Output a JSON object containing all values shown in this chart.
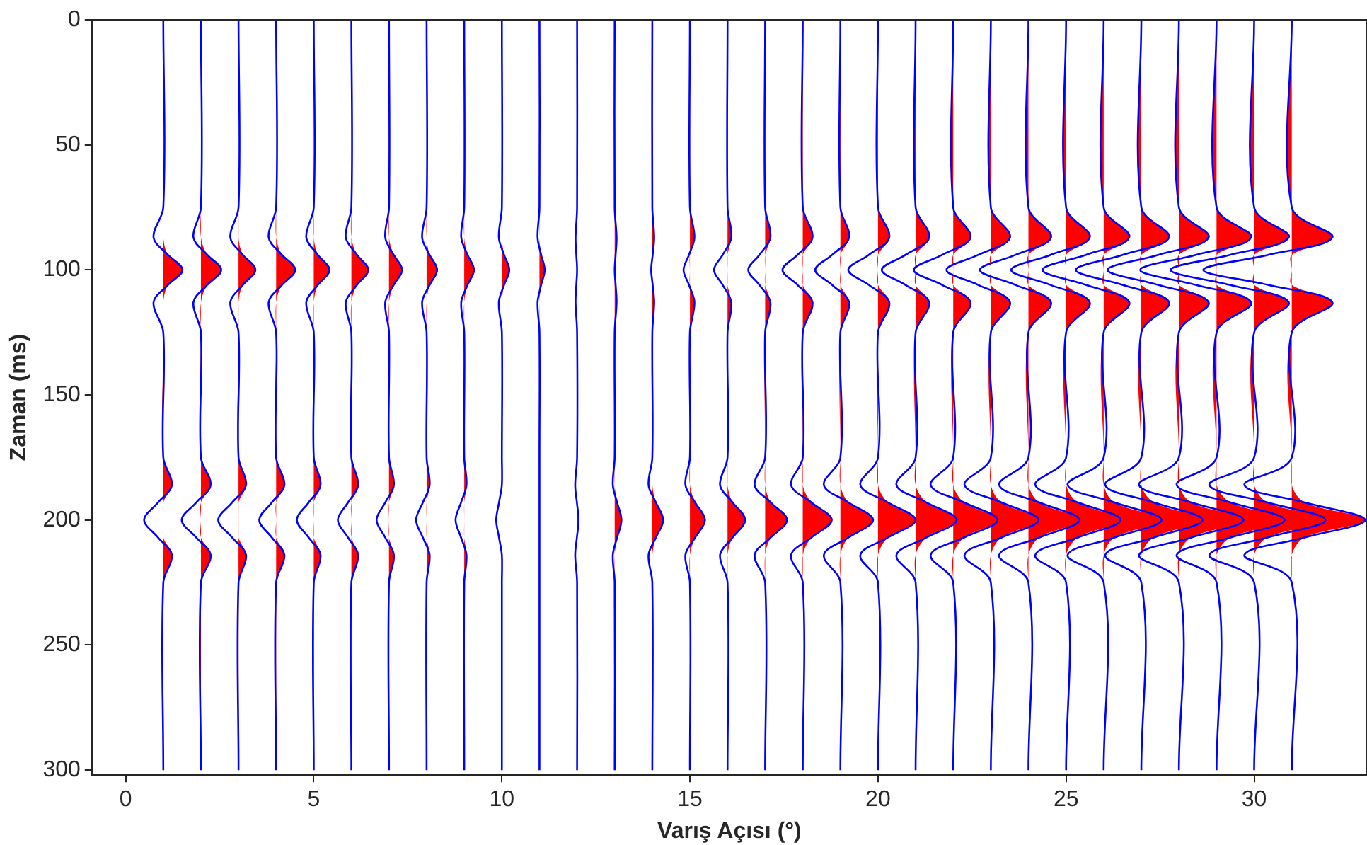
{
  "chart_data": {
    "type": "line",
    "xlabel": "Varış Açısı (°)",
    "ylabel": "Zaman (ms)",
    "xlim": [
      -0.9,
      33
    ],
    "xticks": [
      0,
      5,
      10,
      15,
      20,
      25,
      30
    ],
    "ylim": [
      302,
      0
    ],
    "yticks": [
      0,
      50,
      100,
      150,
      200,
      250,
      300
    ],
    "grid": false,
    "legend": false,
    "series": [
      {
        "type": "area",
        "color": "#ff0000",
        "x": [
          1,
          1,
          1,
          1.125,
          1.51,
          1.125,
          1,
          1,
          1,
          1.23,
          1,
          1,
          1,
          1.23,
          1,
          1
        ],
        "values": [
          0,
          75,
          87,
          94,
          100,
          106,
          113,
          125,
          175,
          186,
          193,
          200,
          207,
          214,
          225,
          300
        ]
      },
      {
        "type": "area",
        "color": "#ff0000",
        "x": [
          2,
          2,
          2,
          2.17,
          2.54,
          2.17,
          2,
          2,
          2,
          2.26,
          2,
          2,
          2,
          2.26,
          2,
          2
        ],
        "values": [
          0,
          75,
          87,
          94,
          100,
          106,
          113,
          125,
          175,
          186,
          193,
          200,
          207,
          214,
          225,
          300
        ]
      },
      {
        "type": "area",
        "color": "#ff0000",
        "x": [
          3,
          3,
          3,
          3.115,
          3.45,
          3.115,
          3,
          3,
          3,
          3.2,
          3,
          3,
          3,
          3.2,
          3,
          3
        ],
        "values": [
          0,
          75,
          87,
          94,
          100,
          106,
          113,
          125,
          175,
          186,
          193,
          200,
          207,
          214,
          225,
          300
        ]
      },
      {
        "type": "area",
        "color": "#ff0000",
        "x": [
          4,
          4,
          4,
          4.155,
          4.51,
          4.155,
          4,
          4,
          4,
          4.22,
          4,
          4,
          4,
          4.22,
          4,
          4
        ],
        "values": [
          0,
          75,
          87,
          94,
          100,
          106,
          113,
          125,
          175,
          186,
          193,
          200,
          207,
          214,
          225,
          300
        ]
      },
      {
        "type": "area",
        "color": "#ff0000",
        "x": [
          5,
          5,
          5,
          5.11,
          5.42,
          5.11,
          5,
          5,
          5,
          5.18,
          5,
          5,
          5,
          5.18,
          5,
          5
        ],
        "values": [
          0,
          75,
          87,
          94,
          100,
          106,
          113,
          125,
          175,
          186,
          193,
          200,
          207,
          214,
          225,
          300
        ]
      },
      {
        "type": "area",
        "color": "#ff0000",
        "x": [
          6,
          6,
          6,
          6.15,
          6.45,
          6.15,
          6,
          6,
          6,
          6.18,
          6,
          6,
          6,
          6.18,
          6,
          6
        ],
        "values": [
          0,
          75,
          87,
          94,
          100,
          106,
          113,
          125,
          175,
          186,
          193,
          200,
          207,
          214,
          225,
          300
        ]
      },
      {
        "type": "area",
        "color": "#ff0000",
        "x": [
          7,
          7,
          7,
          7.125,
          7.35,
          7.125,
          7,
          7,
          7,
          7.13,
          7,
          7,
          7,
          7.13,
          7,
          7
        ],
        "values": [
          0,
          75,
          87,
          94,
          100,
          106,
          113,
          125,
          175,
          186,
          193,
          200,
          207,
          214,
          225,
          300
        ]
      },
      {
        "type": "area",
        "color": "#ff0000",
        "x": [
          8,
          8,
          8,
          8.08,
          8.28,
          8.08,
          8,
          8,
          8,
          8.08,
          8,
          8,
          8,
          8.08,
          8,
          8
        ],
        "values": [
          0,
          75,
          87,
          94,
          100,
          106,
          113,
          125,
          175,
          186,
          193,
          200,
          207,
          214,
          225,
          300
        ]
      },
      {
        "type": "area",
        "color": "#ff0000",
        "x": [
          9,
          9,
          9,
          9.09,
          9.26,
          9.09,
          9,
          9,
          9,
          9.06,
          9,
          9,
          9,
          9.06,
          9,
          9
        ],
        "values": [
          0,
          75,
          87,
          94,
          100,
          106,
          113,
          125,
          175,
          186,
          193,
          200,
          207,
          214,
          225,
          300
        ]
      },
      {
        "type": "area",
        "color": "#ff0000",
        "x": [
          10,
          10,
          10,
          10.06,
          10.2,
          10.06,
          10,
          10,
          10,
          10,
          10,
          10,
          10,
          10,
          10,
          10
        ],
        "values": [
          0,
          75,
          87,
          94,
          100,
          106,
          113,
          125,
          175,
          186,
          193,
          200,
          207,
          214,
          225,
          300
        ]
      },
      {
        "type": "area",
        "color": "#ff0000",
        "x": [
          11,
          11,
          11,
          11.045,
          11.14,
          11.045,
          11,
          11,
          11,
          11,
          11,
          11,
          11,
          11,
          11,
          11
        ],
        "values": [
          0,
          75,
          87,
          94,
          100,
          106,
          113,
          125,
          175,
          186,
          193,
          200,
          207,
          214,
          225,
          300
        ]
      },
      {
        "type": "area",
        "color": "#ff0000",
        "x": [
          12,
          12,
          12,
          12,
          12,
          12,
          12,
          12,
          12,
          12,
          12,
          12.04,
          12,
          12,
          12,
          12
        ],
        "values": [
          0,
          75,
          87,
          94,
          100,
          106,
          113,
          125,
          175,
          186,
          193,
          200,
          207,
          214,
          225,
          300
        ]
      },
      {
        "type": "area",
        "color": "#ff0000",
        "x": [
          13,
          13,
          13.05,
          13.025,
          13,
          13.025,
          13.05,
          13,
          13,
          13,
          13.065,
          13.18,
          13.065,
          13,
          13,
          13
        ],
        "values": [
          0,
          75,
          87,
          94,
          100,
          106,
          113,
          125,
          175,
          186,
          193,
          200,
          207,
          214,
          225,
          300
        ]
      },
      {
        "type": "area",
        "color": "#ff0000",
        "x": [
          14,
          14,
          14.05,
          14.01,
          14,
          14.01,
          14.05,
          14,
          14,
          14,
          14.095,
          14.29,
          14.095,
          14,
          14,
          14
        ],
        "values": [
          0,
          75,
          87,
          94,
          100,
          106,
          113,
          125,
          175,
          186,
          193,
          200,
          207,
          214,
          225,
          300
        ]
      },
      {
        "type": "area",
        "color": "#ff0000",
        "x": [
          15,
          15,
          15.12,
          15,
          15,
          15,
          15.12,
          15,
          15,
          15,
          15.14,
          15.4,
          15.14,
          15,
          15,
          15
        ],
        "values": [
          0,
          75,
          87,
          94,
          100,
          106,
          113,
          125,
          175,
          186,
          193,
          200,
          207,
          214,
          225,
          300
        ]
      },
      {
        "type": "area",
        "color": "#ff0000",
        "x": [
          16,
          16,
          16.1,
          16,
          16,
          16,
          16.1,
          16,
          16,
          16,
          16.135,
          16.47,
          16.135,
          16,
          16,
          16
        ],
        "values": [
          0,
          75,
          87,
          94,
          100,
          106,
          113,
          125,
          175,
          186,
          193,
          200,
          207,
          214,
          225,
          300
        ]
      },
      {
        "type": "area",
        "color": "#ff0000",
        "x": [
          17,
          17,
          17.14,
          17,
          17,
          17,
          17.14,
          17,
          17,
          17,
          17.15,
          17.58,
          17.15,
          17,
          17,
          17
        ],
        "values": [
          0,
          75,
          87,
          94,
          100,
          106,
          113,
          125,
          175,
          186,
          193,
          200,
          207,
          214,
          225,
          300
        ]
      },
      {
        "type": "area",
        "color": "#ff0000",
        "x": [
          18,
          18,
          18.26,
          18,
          18,
          18,
          18.26,
          18,
          18,
          18,
          18.23,
          18.77,
          18.23,
          18,
          18,
          18
        ],
        "values": [
          0,
          75,
          87,
          94,
          100,
          106,
          113,
          125,
          175,
          186,
          193,
          200,
          207,
          214,
          225,
          300
        ]
      },
      {
        "type": "area",
        "color": "#ff0000",
        "x": [
          19,
          19,
          19.23,
          19,
          19,
          19,
          19.23,
          19,
          19,
          19,
          19.215,
          19.87,
          19.215,
          19,
          19,
          19
        ],
        "values": [
          0,
          75,
          87,
          94,
          100,
          106,
          113,
          125,
          175,
          186,
          193,
          200,
          207,
          214,
          225,
          300
        ]
      },
      {
        "type": "area",
        "color": "#ff0000",
        "x": [
          20,
          20,
          20.3,
          20,
          20,
          20,
          20.3,
          20,
          20,
          20,
          20.265,
          21,
          20.265,
          20,
          20,
          20
        ],
        "values": [
          0,
          75,
          87,
          94,
          100,
          106,
          113,
          125,
          175,
          186,
          193,
          200,
          207,
          214,
          225,
          300
        ]
      },
      {
        "type": "area",
        "color": "#ff0000",
        "x": [
          21,
          21,
          21.36,
          21,
          21,
          21,
          21.36,
          21,
          21,
          21,
          21.29,
          22.09,
          21.29,
          21,
          21,
          21
        ],
        "values": [
          0,
          75,
          87,
          94,
          100,
          106,
          113,
          125,
          175,
          186,
          193,
          200,
          207,
          214,
          225,
          300
        ]
      },
      {
        "type": "area",
        "color": "#ff0000",
        "x": [
          22,
          22,
          22.46,
          22,
          22,
          22,
          22.46,
          22,
          22,
          22,
          22.29,
          23.18,
          22.29,
          22,
          22,
          22
        ],
        "values": [
          0,
          75,
          87,
          94,
          100,
          106,
          113,
          125,
          175,
          186,
          193,
          200,
          207,
          214,
          225,
          300
        ]
      },
      {
        "type": "area",
        "color": "#ff0000",
        "x": [
          23,
          23,
          23.51,
          23,
          23,
          23,
          23.51,
          23,
          23,
          23,
          23.285,
          24.27,
          23.285,
          23,
          23,
          23
        ],
        "values": [
          0,
          75,
          87,
          94,
          100,
          106,
          113,
          125,
          175,
          186,
          193,
          200,
          207,
          214,
          225,
          300
        ]
      },
      {
        "type": "area",
        "color": "#ff0000",
        "x": [
          24,
          24,
          24.6,
          24,
          24,
          24,
          24.6,
          24,
          24,
          24,
          24.29,
          25.36,
          24.29,
          24,
          24,
          24
        ],
        "values": [
          0,
          75,
          87,
          94,
          100,
          106,
          113,
          125,
          175,
          186,
          193,
          200,
          207,
          214,
          225,
          300
        ]
      },
      {
        "type": "area",
        "color": "#ff0000",
        "x": [
          25,
          25,
          25.63,
          25,
          25,
          25,
          25.63,
          25,
          25,
          25,
          25.315,
          26.45,
          25.315,
          25,
          25,
          25
        ],
        "values": [
          0,
          75,
          87,
          94,
          100,
          106,
          113,
          125,
          175,
          186,
          193,
          200,
          207,
          214,
          225,
          300
        ]
      },
      {
        "type": "area",
        "color": "#ff0000",
        "x": [
          26,
          26,
          26.68,
          26,
          26,
          26,
          26.68,
          26,
          26,
          26,
          26.29,
          27.54,
          26.29,
          26,
          26,
          26
        ],
        "values": [
          0,
          75,
          87,
          94,
          100,
          106,
          113,
          125,
          175,
          186,
          193,
          200,
          207,
          214,
          225,
          300
        ]
      },
      {
        "type": "area",
        "color": "#ff0000",
        "x": [
          27,
          27,
          27.74,
          27,
          27,
          27,
          27.74,
          27,
          27,
          27,
          27.335,
          28.63,
          27.335,
          27,
          27,
          27
        ],
        "values": [
          0,
          75,
          87,
          94,
          100,
          106,
          113,
          125,
          175,
          186,
          193,
          200,
          207,
          214,
          225,
          300
        ]
      },
      {
        "type": "area",
        "color": "#ff0000",
        "x": [
          28,
          28,
          28.79,
          28,
          28,
          28,
          28.79,
          28,
          28,
          28,
          28.33,
          29.72,
          28.33,
          28,
          28,
          28
        ],
        "values": [
          0,
          75,
          87,
          94,
          100,
          106,
          113,
          125,
          175,
          186,
          193,
          200,
          207,
          214,
          225,
          300
        ]
      },
      {
        "type": "area",
        "color": "#ff0000",
        "x": [
          29,
          29,
          29.92,
          29,
          29,
          29,
          29.92,
          29,
          29,
          29,
          29.375,
          30.81,
          29.375,
          29,
          29,
          29
        ],
        "values": [
          0,
          75,
          87,
          94,
          100,
          106,
          113,
          125,
          175,
          186,
          193,
          200,
          207,
          214,
          225,
          300
        ]
      },
      {
        "type": "area",
        "color": "#ff0000",
        "x": [
          30,
          30,
          30.92,
          30,
          30,
          30,
          30.92,
          30,
          30,
          30,
          30.355,
          31.9,
          30.355,
          30,
          30,
          30
        ],
        "values": [
          0,
          75,
          87,
          94,
          100,
          106,
          113,
          125,
          175,
          186,
          193,
          200,
          207,
          214,
          225,
          300
        ]
      },
      {
        "type": "area",
        "color": "#ff0000",
        "x": [
          31,
          31,
          32.08,
          31,
          31,
          31,
          32.08,
          31,
          31,
          31,
          31.345,
          32.95,
          31.345,
          31,
          31,
          31
        ],
        "values": [
          0,
          75,
          87,
          94,
          100,
          106,
          113,
          125,
          175,
          186,
          193,
          200,
          207,
          214,
          225,
          300
        ]
      },
      {
        "type": "line",
        "color": "#0000ff",
        "x": [
          1,
          1,
          0.74,
          1.125,
          1.51,
          1.125,
          0.74,
          1,
          1,
          1.23,
          0.86,
          0.49,
          0.86,
          1.23,
          1,
          1
        ],
        "values": [
          0,
          75,
          87,
          94,
          100,
          106,
          113,
          125,
          175,
          186,
          193,
          200,
          207,
          214,
          225,
          300
        ]
      },
      {
        "type": "line",
        "color": "#0000ff",
        "x": [
          2,
          2,
          1.8,
          2.17,
          2.54,
          2.17,
          1.8,
          2,
          2,
          2.26,
          1.875,
          1.49,
          1.875,
          2.26,
          2,
          2
        ],
        "values": [
          0,
          75,
          87,
          94,
          100,
          106,
          113,
          125,
          175,
          186,
          193,
          200,
          207,
          214,
          225,
          300
        ]
      },
      {
        "type": "line",
        "color": "#0000ff",
        "x": [
          3,
          3,
          2.78,
          3.115,
          3.45,
          3.115,
          2.78,
          3,
          3,
          3.2,
          2.83,
          2.46,
          2.83,
          3.2,
          3,
          3
        ],
        "values": [
          0,
          75,
          87,
          94,
          100,
          106,
          113,
          125,
          175,
          186,
          193,
          200,
          207,
          214,
          225,
          300
        ]
      },
      {
        "type": "line",
        "color": "#0000ff",
        "x": [
          4,
          4,
          3.8,
          4.155,
          4.51,
          4.155,
          3.8,
          4,
          4,
          4.22,
          3.885,
          3.55,
          3.885,
          4.22,
          4,
          4
        ],
        "values": [
          0,
          75,
          87,
          94,
          100,
          106,
          113,
          125,
          175,
          186,
          193,
          200,
          207,
          214,
          225,
          300
        ]
      },
      {
        "type": "line",
        "color": "#0000ff",
        "x": [
          5,
          5,
          4.8,
          5.11,
          5.42,
          5.11,
          4.8,
          5,
          5,
          5.18,
          4.865,
          4.55,
          4.865,
          5.18,
          5,
          5
        ],
        "values": [
          0,
          75,
          87,
          94,
          100,
          106,
          113,
          125,
          175,
          186,
          193,
          200,
          207,
          214,
          225,
          300
        ]
      },
      {
        "type": "line",
        "color": "#0000ff",
        "x": [
          6,
          6,
          5.85,
          6.15,
          6.45,
          6.15,
          5.85,
          6,
          6,
          6.18,
          5.91,
          5.64,
          5.91,
          6.18,
          6,
          6
        ],
        "values": [
          0,
          75,
          87,
          94,
          100,
          106,
          113,
          125,
          175,
          186,
          193,
          200,
          207,
          214,
          225,
          300
        ]
      },
      {
        "type": "line",
        "color": "#0000ff",
        "x": [
          7,
          7,
          6.9,
          7.125,
          7.35,
          7.125,
          6.9,
          7,
          7,
          7.13,
          6.9,
          6.67,
          6.9,
          7.13,
          7,
          7
        ],
        "values": [
          0,
          75,
          87,
          94,
          100,
          106,
          113,
          125,
          175,
          186,
          193,
          200,
          207,
          214,
          225,
          300
        ]
      },
      {
        "type": "line",
        "color": "#0000ff",
        "x": [
          8,
          8,
          7.88,
          8.08,
          8.28,
          8.08,
          7.88,
          8,
          8,
          8.08,
          7.9,
          7.72,
          7.9,
          8.08,
          8,
          8
        ],
        "values": [
          0,
          75,
          87,
          94,
          100,
          106,
          113,
          125,
          175,
          186,
          193,
          200,
          207,
          214,
          225,
          300
        ]
      },
      {
        "type": "line",
        "color": "#0000ff",
        "x": [
          9,
          9,
          8.92,
          9.09,
          9.26,
          9.09,
          8.92,
          9,
          9,
          9.06,
          8.915,
          8.77,
          8.915,
          9.06,
          9,
          9
        ],
        "values": [
          0,
          75,
          87,
          94,
          100,
          106,
          113,
          125,
          175,
          186,
          193,
          200,
          207,
          214,
          225,
          300
        ]
      },
      {
        "type": "line",
        "color": "#0000ff",
        "x": [
          10,
          10,
          9.92,
          10.06,
          10.2,
          10.06,
          9.92,
          10,
          10,
          10,
          9.925,
          9.85,
          9.925,
          10,
          10,
          10
        ],
        "values": [
          0,
          75,
          87,
          94,
          100,
          106,
          113,
          125,
          175,
          186,
          193,
          200,
          207,
          214,
          225,
          300
        ]
      },
      {
        "type": "line",
        "color": "#0000ff",
        "x": [
          11,
          11,
          10.95,
          11.045,
          11.14,
          11.045,
          10.95,
          11,
          11,
          11,
          11,
          11,
          11,
          11,
          11,
          11
        ],
        "values": [
          0,
          75,
          87,
          94,
          100,
          106,
          113,
          125,
          175,
          186,
          193,
          200,
          207,
          214,
          225,
          300
        ]
      },
      {
        "type": "line",
        "color": "#0000ff",
        "x": [
          12,
          12,
          11.96,
          11.98,
          12,
          11.98,
          11.96,
          12,
          12,
          11.95,
          11.995,
          12.04,
          11.995,
          11.95,
          12,
          12
        ],
        "values": [
          0,
          75,
          87,
          94,
          100,
          106,
          113,
          125,
          175,
          186,
          193,
          200,
          207,
          214,
          225,
          300
        ]
      },
      {
        "type": "line",
        "color": "#0000ff",
        "x": [
          13,
          13,
          13.05,
          13.025,
          13,
          13.025,
          13.05,
          13,
          13,
          12.95,
          13.065,
          13.18,
          13.065,
          12.95,
          13,
          13
        ],
        "values": [
          0,
          75,
          87,
          94,
          100,
          106,
          113,
          125,
          175,
          186,
          193,
          200,
          207,
          214,
          225,
          300
        ]
      },
      {
        "type": "line",
        "color": "#0000ff",
        "x": [
          14,
          14,
          14.05,
          14.01,
          13.97,
          14.01,
          14.05,
          14,
          14,
          13.9,
          14.095,
          14.29,
          14.095,
          13.9,
          14,
          14
        ],
        "values": [
          0,
          75,
          87,
          94,
          100,
          106,
          113,
          125,
          175,
          186,
          193,
          200,
          207,
          214,
          225,
          300
        ]
      },
      {
        "type": "line",
        "color": "#0000ff",
        "x": [
          15,
          15,
          15.12,
          14.975,
          14.83,
          14.975,
          15.12,
          15,
          15,
          14.88,
          15.14,
          15.4,
          15.14,
          14.88,
          15,
          15
        ],
        "values": [
          0,
          75,
          87,
          94,
          100,
          106,
          113,
          125,
          175,
          186,
          193,
          200,
          207,
          214,
          225,
          300
        ]
      },
      {
        "type": "line",
        "color": "#0000ff",
        "x": [
          16,
          16,
          16.1,
          15.87,
          15.64,
          15.87,
          16.1,
          16,
          16,
          15.8,
          16.135,
          16.47,
          16.135,
          15.8,
          16,
          16
        ],
        "values": [
          0,
          75,
          87,
          94,
          100,
          106,
          113,
          125,
          175,
          186,
          193,
          200,
          207,
          214,
          225,
          300
        ]
      },
      {
        "type": "line",
        "color": "#0000ff",
        "x": [
          17,
          17,
          17.14,
          16.845,
          16.55,
          16.845,
          17.14,
          17,
          17,
          16.72,
          17.15,
          17.58,
          17.15,
          16.72,
          17,
          17
        ],
        "values": [
          0,
          75,
          87,
          94,
          100,
          106,
          113,
          125,
          175,
          186,
          193,
          200,
          207,
          214,
          225,
          300
        ]
      },
      {
        "type": "line",
        "color": "#0000ff",
        "x": [
          18,
          18,
          18.26,
          17.86,
          17.46,
          17.86,
          18.26,
          18,
          18,
          17.69,
          18.23,
          18.77,
          18.23,
          17.69,
          18,
          18
        ],
        "values": [
          0,
          75,
          87,
          94,
          100,
          106,
          113,
          125,
          175,
          186,
          193,
          200,
          207,
          214,
          225,
          300
        ]
      },
      {
        "type": "line",
        "color": "#0000ff",
        "x": [
          19,
          19,
          19.23,
          18.78,
          18.33,
          18.78,
          19.23,
          19,
          19,
          18.56,
          19.215,
          19.87,
          19.215,
          18.56,
          19,
          19
        ],
        "values": [
          0,
          75,
          87,
          94,
          100,
          106,
          113,
          125,
          175,
          186,
          193,
          200,
          207,
          214,
          225,
          300
        ]
      },
      {
        "type": "line",
        "color": "#0000ff",
        "x": [
          20,
          20,
          20.3,
          19.755,
          19.21,
          19.755,
          20.3,
          20,
          20,
          19.53,
          20.265,
          21,
          20.265,
          19.53,
          20,
          20
        ],
        "values": [
          0,
          75,
          87,
          94,
          100,
          106,
          113,
          125,
          175,
          186,
          193,
          200,
          207,
          214,
          225,
          300
        ]
      },
      {
        "type": "line",
        "color": "#0000ff",
        "x": [
          21,
          21,
          21.36,
          20.73,
          20.1,
          20.73,
          21.36,
          21,
          21,
          20.49,
          21.29,
          22.09,
          21.29,
          20.49,
          21,
          21
        ],
        "values": [
          0,
          75,
          87,
          94,
          100,
          106,
          113,
          125,
          175,
          186,
          193,
          200,
          207,
          214,
          225,
          300
        ]
      },
      {
        "type": "line",
        "color": "#0000ff",
        "x": [
          22,
          22,
          22.46,
          21.705,
          20.95,
          21.705,
          22.46,
          22,
          22,
          21.4,
          22.29,
          23.18,
          22.29,
          21.4,
          22,
          22
        ],
        "values": [
          0,
          75,
          87,
          94,
          100,
          106,
          113,
          125,
          175,
          186,
          193,
          200,
          207,
          214,
          225,
          300
        ]
      },
      {
        "type": "line",
        "color": "#0000ff",
        "x": [
          23,
          23,
          23.51,
          22.665,
          21.82,
          22.665,
          23.51,
          23,
          23,
          22.3,
          23.285,
          24.27,
          23.285,
          22.3,
          23,
          23
        ],
        "values": [
          0,
          75,
          87,
          94,
          100,
          106,
          113,
          125,
          175,
          186,
          193,
          200,
          207,
          214,
          225,
          300
        ]
      },
      {
        "type": "line",
        "color": "#0000ff",
        "x": [
          24,
          24,
          24.6,
          23.655,
          22.71,
          23.655,
          24.6,
          24,
          24,
          23.22,
          24.29,
          25.36,
          24.29,
          23.22,
          24,
          24
        ],
        "values": [
          0,
          75,
          87,
          94,
          100,
          106,
          113,
          125,
          175,
          186,
          193,
          200,
          207,
          214,
          225,
          300
        ]
      },
      {
        "type": "line",
        "color": "#0000ff",
        "x": [
          25,
          25,
          25.63,
          24.585,
          23.54,
          24.585,
          25.63,
          25,
          25,
          24.18,
          25.315,
          26.45,
          25.315,
          24.18,
          25,
          25
        ],
        "values": [
          0,
          75,
          87,
          94,
          100,
          106,
          113,
          125,
          175,
          186,
          193,
          200,
          207,
          214,
          225,
          300
        ]
      },
      {
        "type": "line",
        "color": "#0000ff",
        "x": [
          26,
          26,
          26.68,
          25.525,
          24.37,
          25.525,
          26.68,
          26,
          26,
          25.04,
          26.29,
          27.54,
          26.29,
          25.04,
          26,
          26
        ],
        "values": [
          0,
          75,
          87,
          94,
          100,
          106,
          113,
          125,
          175,
          186,
          193,
          200,
          207,
          214,
          225,
          300
        ]
      },
      {
        "type": "line",
        "color": "#0000ff",
        "x": [
          27,
          27,
          27.74,
          26.5,
          25.26,
          26.5,
          27.74,
          27,
          27,
          26.04,
          27.335,
          28.63,
          27.335,
          26.04,
          27,
          27
        ],
        "values": [
          0,
          75,
          87,
          94,
          100,
          106,
          113,
          125,
          175,
          186,
          193,
          200,
          207,
          214,
          225,
          300
        ]
      },
      {
        "type": "line",
        "color": "#0000ff",
        "x": [
          28,
          28,
          28.79,
          27.445,
          26.1,
          27.445,
          28.79,
          28,
          28,
          26.94,
          28.33,
          29.72,
          28.33,
          26.94,
          28,
          28
        ],
        "values": [
          0,
          75,
          87,
          94,
          100,
          106,
          113,
          125,
          175,
          186,
          193,
          200,
          207,
          214,
          225,
          300
        ]
      },
      {
        "type": "line",
        "color": "#0000ff",
        "x": [
          29,
          29,
          29.92,
          28.445,
          26.97,
          28.445,
          29.92,
          29,
          29,
          27.94,
          29.375,
          30.81,
          29.375,
          27.94,
          29,
          29
        ],
        "values": [
          0,
          75,
          87,
          94,
          100,
          106,
          113,
          125,
          175,
          186,
          193,
          200,
          207,
          214,
          225,
          300
        ]
      },
      {
        "type": "line",
        "color": "#0000ff",
        "x": [
          30,
          30,
          30.92,
          29.35,
          27.78,
          29.35,
          30.92,
          30,
          30,
          28.81,
          30.355,
          31.9,
          30.355,
          28.81,
          30,
          30
        ],
        "values": [
          0,
          75,
          87,
          94,
          100,
          106,
          113,
          125,
          175,
          186,
          193,
          200,
          207,
          214,
          225,
          300
        ]
      },
      {
        "type": "line",
        "color": "#0000ff",
        "x": [
          31,
          31,
          32.08,
          30.365,
          28.65,
          30.365,
          32.08,
          31,
          31,
          29.74,
          31.345,
          32.95,
          31.345,
          29.74,
          31,
          31
        ],
        "values": [
          0,
          75,
          87,
          94,
          100,
          106,
          113,
          125,
          175,
          186,
          193,
          200,
          207,
          214,
          225,
          300
        ]
      }
    ]
  }
}
